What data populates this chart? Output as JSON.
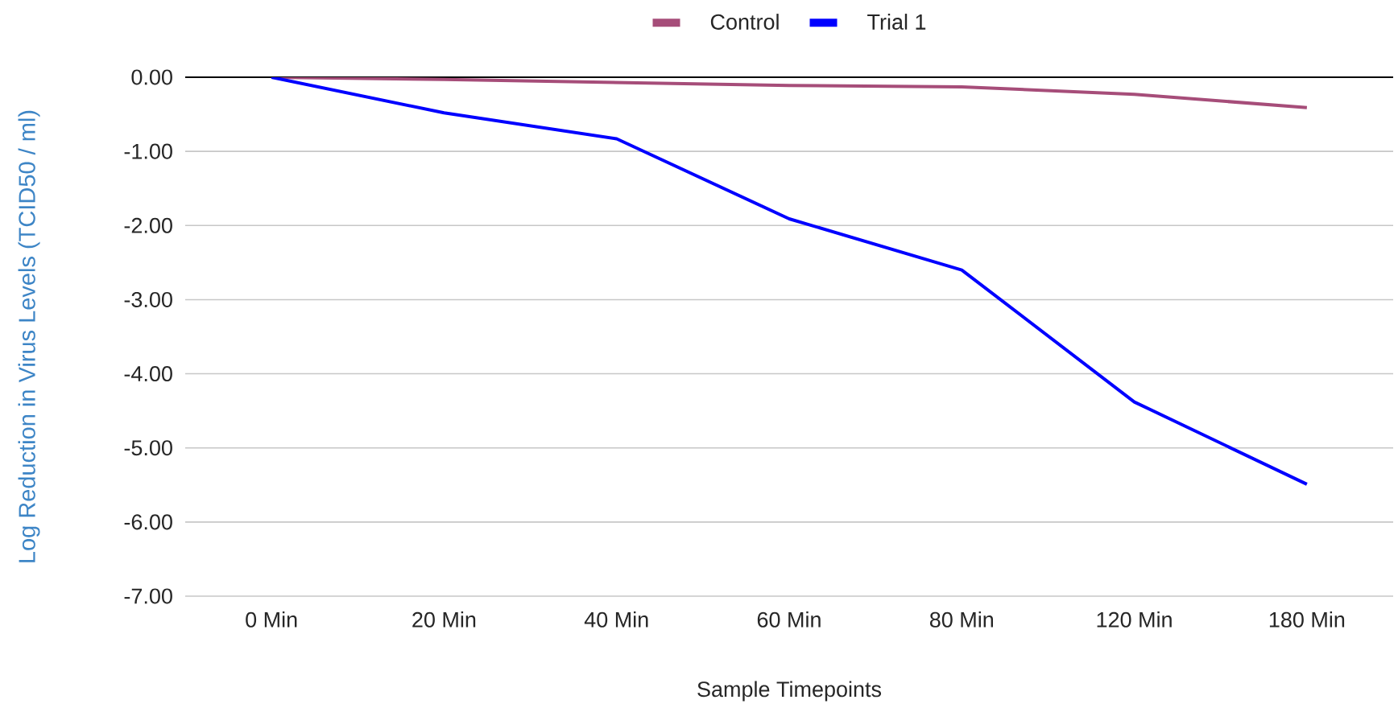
{
  "chart_data": {
    "type": "line",
    "xlabel": "Sample Timepoints",
    "ylabel": "Log Reduction in Virus Levels (TCID50 / ml)",
    "categories": [
      "0 Min",
      "20 Min",
      "40 Min",
      "60 Min",
      "80 Min",
      "120 Min",
      "180 Min"
    ],
    "series": [
      {
        "name": "Control",
        "color": "#a64d79",
        "values": [
          0,
          -0.03,
          -0.07,
          -0.11,
          -0.13,
          -0.23,
          -0.41
        ]
      },
      {
        "name": "Trial 1",
        "color": "#0000ff",
        "values": [
          0,
          -0.48,
          -0.83,
          -1.91,
          -2.6,
          -4.38,
          -5.49
        ]
      }
    ],
    "ylim": [
      -7,
      0
    ],
    "yticks": [
      {
        "value": 0,
        "label": "0.00"
      },
      {
        "value": -1,
        "label": "-1.00"
      },
      {
        "value": -2,
        "label": "-2.00"
      },
      {
        "value": -3,
        "label": "-3.00"
      },
      {
        "value": -4,
        "label": "-4.00"
      },
      {
        "value": -5,
        "label": "-5.00"
      },
      {
        "value": -6,
        "label": "-6.00"
      },
      {
        "value": -7,
        "label": "-7.00"
      }
    ],
    "grid": "y",
    "legend": "top",
    "marker": "none",
    "line_style": "solid"
  }
}
